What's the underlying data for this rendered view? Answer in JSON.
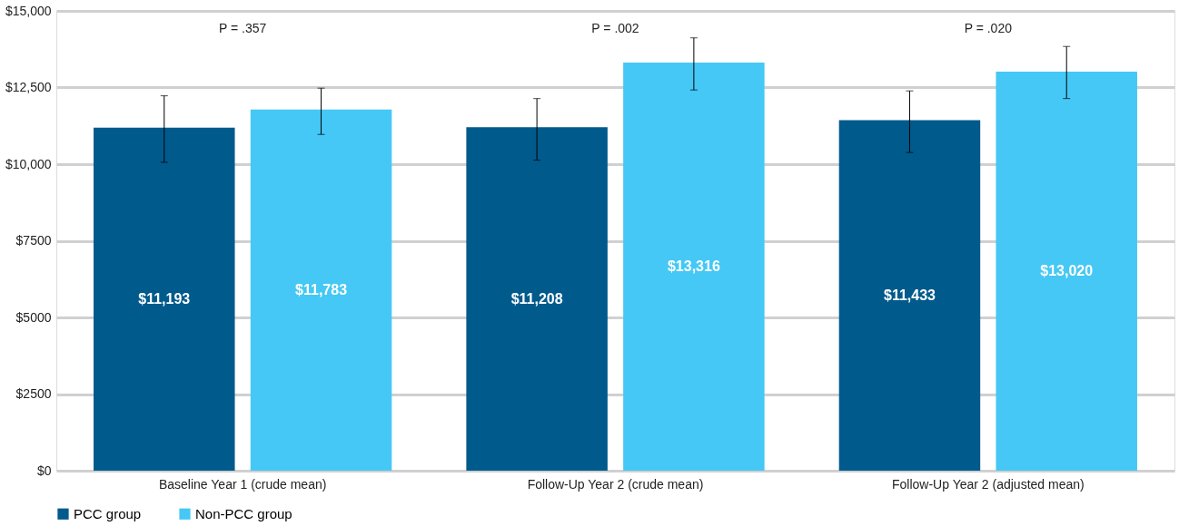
{
  "chart_data": {
    "type": "bar",
    "categories": [
      "Baseline Year 1 (crude mean)",
      "Follow-Up Year 2 (crude mean)",
      "Follow-Up Year 2 (adjusted mean)"
    ],
    "series": [
      {
        "name": "PCC group",
        "color": "#005a8c",
        "values": [
          11193,
          11208,
          11433
        ],
        "value_labels": [
          "$11,193",
          "$11,208",
          "$11,433"
        ],
        "errors": [
          [
            10060,
            12230
          ],
          [
            10130,
            12140
          ],
          [
            10380,
            12390
          ]
        ]
      },
      {
        "name": "Non-PCC group",
        "color": "#45c8f5",
        "values": [
          11783,
          13316,
          13020
        ],
        "value_labels": [
          "$11,783",
          "$13,316",
          "$13,020"
        ],
        "errors": [
          [
            10970,
            12480
          ],
          [
            12420,
            14120
          ],
          [
            12140,
            13840
          ]
        ]
      }
    ],
    "ylim": [
      0,
      15000
    ],
    "yticks": [
      {
        "value": 0,
        "label": "$0"
      },
      {
        "value": 2500,
        "label": "$2500"
      },
      {
        "value": 5000,
        "label": "$5000"
      },
      {
        "value": 7500,
        "label": "$7500"
      },
      {
        "value": 10000,
        "label": "$10,000"
      },
      {
        "value": 12500,
        "label": "$12,500"
      },
      {
        "value": 15000,
        "label": "$15,000"
      }
    ],
    "annotations": [
      "P = .357",
      "P = .002",
      "P = .020"
    ],
    "grid": "y",
    "legend": "bottom"
  }
}
